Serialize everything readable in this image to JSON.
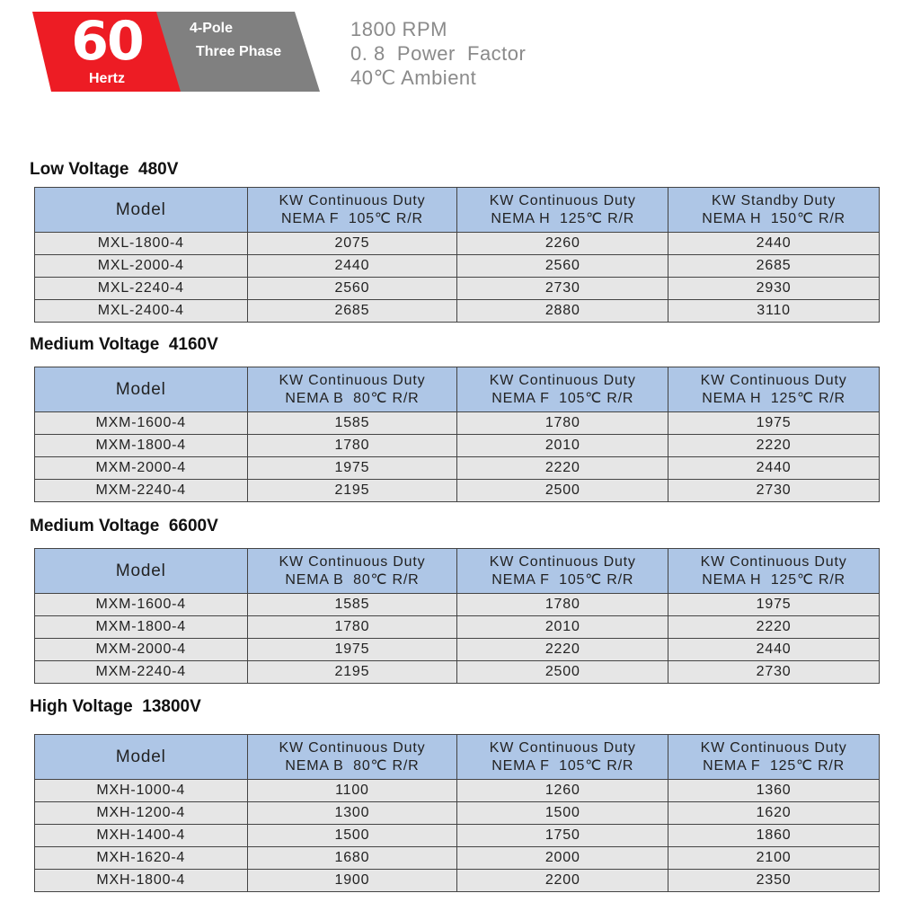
{
  "header": {
    "frequency": "60",
    "frequency_unit": "Hertz",
    "poles": "4-Pole",
    "phase": "Three Phase",
    "specs": [
      "1800 RPM",
      "0. 8  Power  Factor",
      "40℃ Ambient"
    ],
    "colors": {
      "red": "#ed1c24",
      "gray": "#808080",
      "table_header": "#aec6e6",
      "table_row": "#e6e6e6"
    }
  },
  "tables": [
    {
      "title": "Low Voltage  480V",
      "columns": [
        [
          "Model"
        ],
        [
          "KW Continuous Duty",
          "NEMA F  105℃ R/R"
        ],
        [
          "KW Continuous Duty",
          "NEMA H  125℃ R/R"
        ],
        [
          "KW Standby Duty",
          "NEMA H  150℃ R/R"
        ]
      ],
      "rows": [
        [
          "MXL-1800-4",
          "2075",
          "2260",
          "2440"
        ],
        [
          "MXL-2000-4",
          "2440",
          "2560",
          "2685"
        ],
        [
          "MXL-2240-4",
          "2560",
          "2730",
          "2930"
        ],
        [
          "MXL-2400-4",
          "2685",
          "2880",
          "3110"
        ]
      ]
    },
    {
      "title": "Medium Voltage  4160V",
      "columns": [
        [
          "Model"
        ],
        [
          "KW Continuous Duty",
          "NEMA B  80℃ R/R"
        ],
        [
          "KW Continuous Duty",
          "NEMA F  105℃ R/R"
        ],
        [
          "KW Continuous Duty",
          "NEMA H  125℃ R/R"
        ]
      ],
      "rows": [
        [
          "MXM-1600-4",
          "1585",
          "1780",
          "1975"
        ],
        [
          "MXM-1800-4",
          "1780",
          "2010",
          "2220"
        ],
        [
          "MXM-2000-4",
          "1975",
          "2220",
          "2440"
        ],
        [
          "MXM-2240-4",
          "2195",
          "2500",
          "2730"
        ]
      ]
    },
    {
      "title": "Medium Voltage  6600V",
      "columns": [
        [
          "Model"
        ],
        [
          "KW Continuous Duty",
          "NEMA B  80℃ R/R"
        ],
        [
          "KW Continuous Duty",
          "NEMA F  105℃ R/R"
        ],
        [
          "KW Continuous Duty",
          "NEMA H  125℃ R/R"
        ]
      ],
      "rows": [
        [
          "MXM-1600-4",
          "1585",
          "1780",
          "1975"
        ],
        [
          "MXM-1800-4",
          "1780",
          "2010",
          "2220"
        ],
        [
          "MXM-2000-4",
          "1975",
          "2220",
          "2440"
        ],
        [
          "MXM-2240-4",
          "2195",
          "2500",
          "2730"
        ]
      ]
    },
    {
      "title": "High Voltage  13800V",
      "columns": [
        [
          "Model"
        ],
        [
          "KW Continuous Duty",
          "NEMA B  80℃ R/R"
        ],
        [
          "KW Continuous Duty",
          "NEMA F  105℃ R/R"
        ],
        [
          "KW Continuous Duty",
          "NEMA F  125℃ R/R"
        ]
      ],
      "rows": [
        [
          "MXH-1000-4",
          "1100",
          "1260",
          "1360"
        ],
        [
          "MXH-1200-4",
          "1300",
          "1500",
          "1620"
        ],
        [
          "MXH-1400-4",
          "1500",
          "1750",
          "1860"
        ],
        [
          "MXH-1620-4",
          "1680",
          "2000",
          "2100"
        ],
        [
          "MXH-1800-4",
          "1900",
          "2200",
          "2350"
        ]
      ]
    }
  ]
}
